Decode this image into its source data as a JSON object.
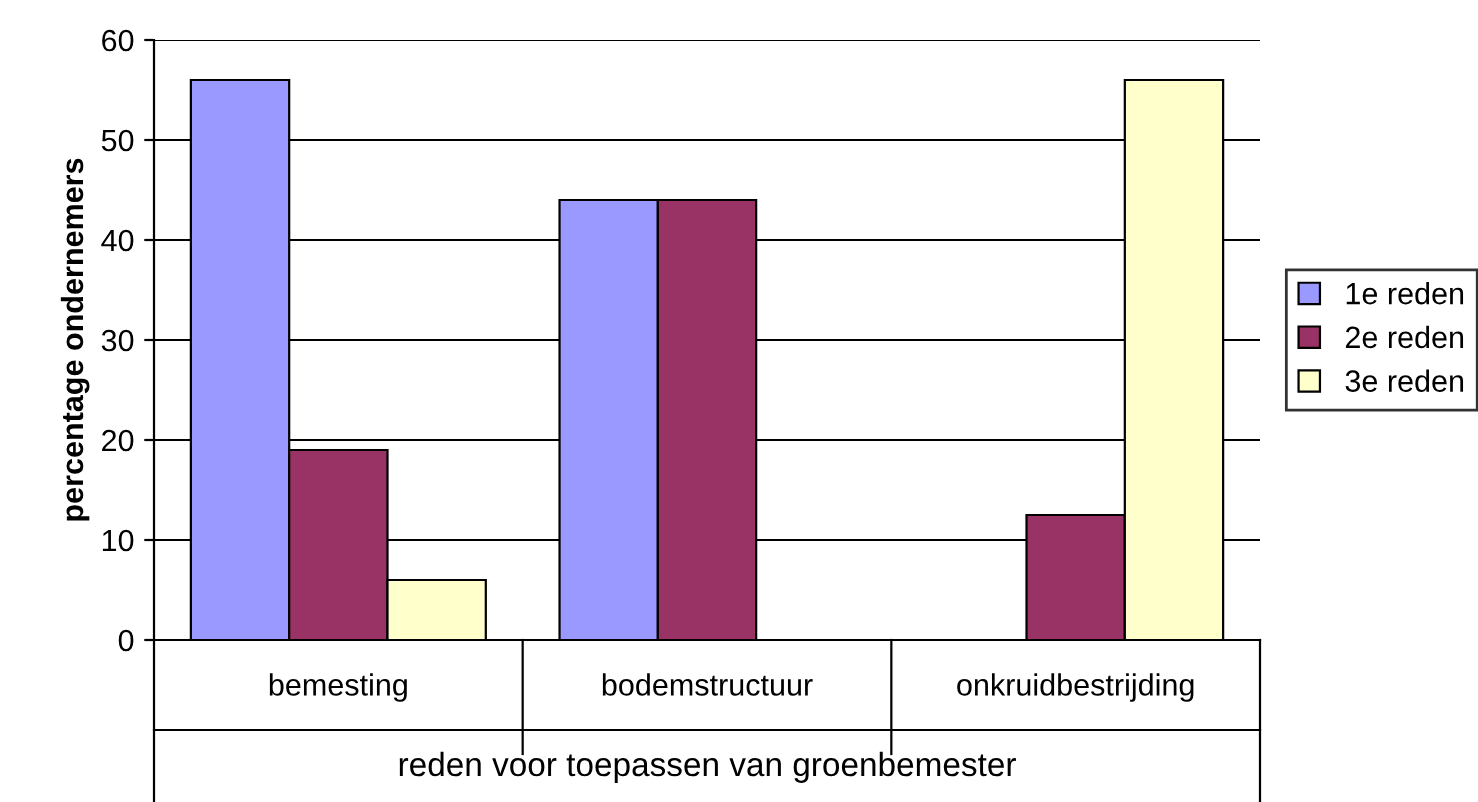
{
  "chart_data": {
    "type": "bar",
    "categories": [
      "bemesting",
      "bodemstructuur",
      "onkruidbestrijding"
    ],
    "series": [
      {
        "name": "1e reden",
        "color": "#9999ff",
        "values": [
          56,
          44,
          null
        ]
      },
      {
        "name": "2e reden",
        "color": "#993366",
        "values": [
          19,
          44,
          12.5
        ]
      },
      {
        "name": "3e reden",
        "color": "#ffffcc",
        "values": [
          6,
          null,
          56
        ]
      }
    ],
    "xlabel": "reden voor toepassen van groenbemester",
    "ylabel": "percentage ondernemers",
    "ylim": [
      0,
      60
    ],
    "yticks": [
      0,
      10,
      20,
      30,
      40,
      50,
      60
    ],
    "grid": "y",
    "legend": "right"
  }
}
